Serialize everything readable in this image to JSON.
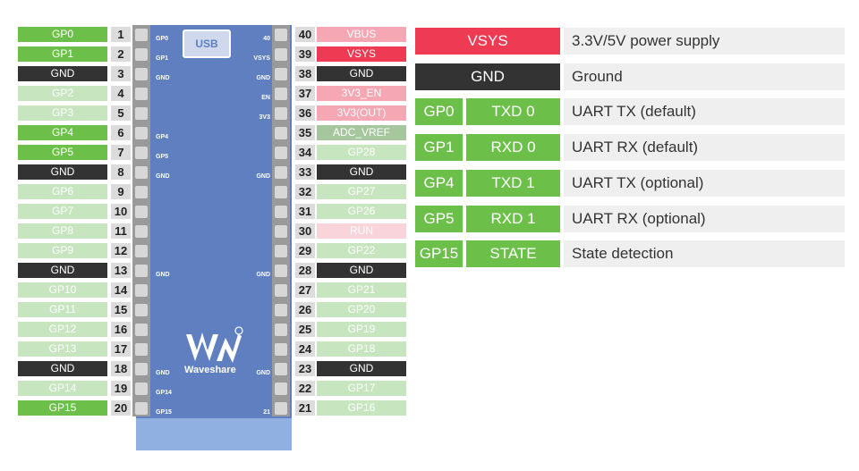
{
  "left_pins": [
    {
      "label": "GP0",
      "num": "1",
      "color": "green"
    },
    {
      "label": "GP1",
      "num": "2",
      "color": "green"
    },
    {
      "label": "GND",
      "num": "3",
      "color": "gnd"
    },
    {
      "label": "GP2",
      "num": "4",
      "color": "lgreen"
    },
    {
      "label": "GP3",
      "num": "5",
      "color": "lgreen"
    },
    {
      "label": "GP4",
      "num": "6",
      "color": "green"
    },
    {
      "label": "GP5",
      "num": "7",
      "color": "green"
    },
    {
      "label": "GND",
      "num": "8",
      "color": "gnd"
    },
    {
      "label": "GP6",
      "num": "9",
      "color": "lgreen"
    },
    {
      "label": "GP7",
      "num": "10",
      "color": "lgreen"
    },
    {
      "label": "GP8",
      "num": "11",
      "color": "lgreen"
    },
    {
      "label": "GP9",
      "num": "12",
      "color": "lgreen"
    },
    {
      "label": "GND",
      "num": "13",
      "color": "gnd"
    },
    {
      "label": "GP10",
      "num": "14",
      "color": "lgreen"
    },
    {
      "label": "GP11",
      "num": "15",
      "color": "lgreen"
    },
    {
      "label": "GP12",
      "num": "16",
      "color": "lgreen"
    },
    {
      "label": "GP13",
      "num": "17",
      "color": "lgreen"
    },
    {
      "label": "GND",
      "num": "18",
      "color": "gnd"
    },
    {
      "label": "GP14",
      "num": "19",
      "color": "lgreen"
    },
    {
      "label": "GP15",
      "num": "20",
      "color": "green"
    }
  ],
  "right_pins": [
    {
      "label": "VBUS",
      "num": "40",
      "color": "pink"
    },
    {
      "label": "VSYS",
      "num": "39",
      "color": "red"
    },
    {
      "label": "GND",
      "num": "38",
      "color": "gnd"
    },
    {
      "label": "3V3_EN",
      "num": "37",
      "color": "pink"
    },
    {
      "label": "3V3(OUT)",
      "num": "36",
      "color": "pink"
    },
    {
      "label": "ADC_VREF",
      "num": "35",
      "color": "grey"
    },
    {
      "label": "GP28",
      "num": "34",
      "color": "lgreen"
    },
    {
      "label": "GND",
      "num": "33",
      "color": "gnd"
    },
    {
      "label": "GP27",
      "num": "32",
      "color": "lgreen"
    },
    {
      "label": "GP26",
      "num": "31",
      "color": "lgreen"
    },
    {
      "label": "RUN",
      "num": "30",
      "color": "lpink"
    },
    {
      "label": "GP22",
      "num": "29",
      "color": "lgreen"
    },
    {
      "label": "GND",
      "num": "28",
      "color": "gnd"
    },
    {
      "label": "GP21",
      "num": "27",
      "color": "lgreen"
    },
    {
      "label": "GP20",
      "num": "26",
      "color": "lgreen"
    },
    {
      "label": "GP19",
      "num": "25",
      "color": "lgreen"
    },
    {
      "label": "GP18",
      "num": "24",
      "color": "lgreen"
    },
    {
      "label": "GND",
      "num": "23",
      "color": "gnd"
    },
    {
      "label": "GP17",
      "num": "22",
      "color": "lgreen"
    },
    {
      "label": "GP16",
      "num": "21",
      "color": "lgreen"
    }
  ],
  "board": {
    "usb_label": "USB",
    "brand": "Waveshare",
    "silk_left": [
      "GP0",
      "GP1",
      "GND",
      "GP4",
      "GP5",
      "GND",
      "GND",
      "GND",
      "GP14",
      "GP15"
    ],
    "silk_right": [
      "40",
      "VSYS",
      "GND",
      "EN",
      "3V3",
      "GND",
      "GND",
      "GND",
      "21"
    ]
  },
  "legend": [
    {
      "pin": "VSYS",
      "func": "",
      "desc": "3.3V/5V power supply",
      "color": "red"
    },
    {
      "pin": "GND",
      "func": "",
      "desc": "Ground",
      "color": "gnd"
    },
    {
      "pin": "GP0",
      "func": "TXD 0",
      "desc": "UART TX (default)",
      "color": "green"
    },
    {
      "pin": "GP1",
      "func": "RXD 0",
      "desc": "UART RX (default)",
      "color": "green"
    },
    {
      "pin": "GP4",
      "func": "TXD 1",
      "desc": "UART TX (optional)",
      "color": "green"
    },
    {
      "pin": "GP5",
      "func": "RXD 1",
      "desc": "UART RX (optional)",
      "color": "green"
    },
    {
      "pin": "GP15",
      "func": "STATE",
      "desc": "State detection",
      "color": "green"
    }
  ]
}
